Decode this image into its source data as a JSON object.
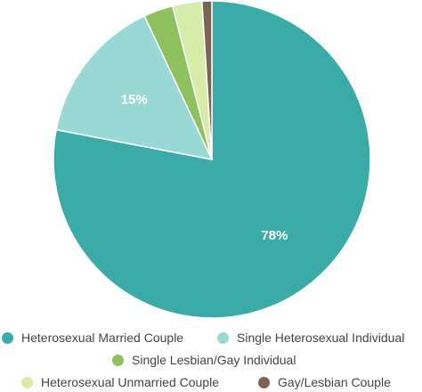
{
  "chart_data": {
    "type": "pie",
    "categories": [
      "Heterosexual Married Couple",
      "Single Heterosexual Individual",
      "Single Lesbian/Gay Individual",
      "Heterosexual Unmarried Couple",
      "Gay/Lesbian Couple"
    ],
    "values": [
      78,
      15,
      3,
      3,
      1
    ],
    "data_labels": [
      "78%",
      "15%",
      "",
      "",
      ""
    ],
    "colors": [
      "#3aaba6",
      "#9ad8d6",
      "#8fc05e",
      "#d6eca8",
      "#7a6456"
    ],
    "title": "",
    "legend_position": "bottom"
  }
}
